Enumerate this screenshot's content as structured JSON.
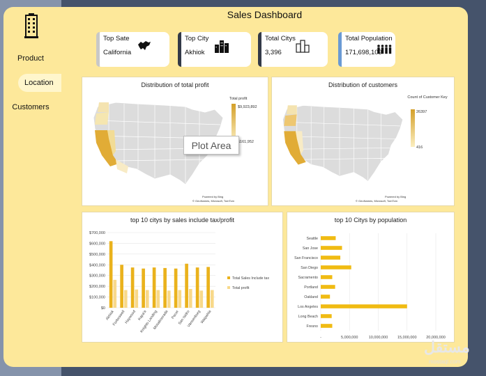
{
  "sidebar": {
    "items": [
      {
        "label": "Product"
      },
      {
        "label": "Location",
        "active": true
      },
      {
        "label": "Customers"
      }
    ]
  },
  "title": "Sales Dashboard",
  "cards": [
    {
      "label": "Top Sate",
      "value": "California",
      "accent": "#c8c8c8"
    },
    {
      "label": "Top City",
      "value": "Akhiok",
      "accent": "#333a48"
    },
    {
      "label": "Total Citys",
      "value": "3,396",
      "accent": "#333a48"
    },
    {
      "label": "Total Population",
      "value": "171,698,109",
      "accent": "#6a9ad4"
    }
  ],
  "map1": {
    "title": "Distribution of total profit",
    "legend_title": "Total profit",
    "max": "$9,923,892",
    "min": "$161,952",
    "powered": "Powered by Bing",
    "credit": "© GeoNames, Microsoft, TomTom"
  },
  "map2": {
    "title": "Distribution of customers",
    "legend_title": "Count of Customer Key",
    "max": "26397",
    "min": "416",
    "powered": "Powered by Bing",
    "credit": "© GeoNames, Microsoft, TomTom"
  },
  "tooltip": "Plot Area",
  "chart_data": [
    {
      "type": "bar",
      "title": "top 10 citys by sales include tax/profit",
      "categories": [
        "Akhiok",
        "Forbeswell",
        "Haywood",
        "Kapa'a",
        "Knights Landing",
        "Mosaboorada",
        "Pacer",
        "San Isidro",
        "Vansenburg",
        "Waipahia"
      ],
      "series": [
        {
          "name": "Total Sales Include tax",
          "values": [
            620000,
            400000,
            375000,
            365000,
            375000,
            370000,
            365000,
            410000,
            375000,
            380000
          ],
          "color": "#eab21c"
        },
        {
          "name": "Total profit",
          "values": [
            260000,
            165000,
            170000,
            165000,
            165000,
            160000,
            165000,
            175000,
            160000,
            165000
          ],
          "color": "#f8d98a"
        }
      ],
      "yticks": [
        "$0",
        "$100,000",
        "$200,000",
        "$300,000",
        "$400,000",
        "$500,000",
        "$600,000",
        "$700,000"
      ],
      "ylim": [
        0,
        700000
      ]
    },
    {
      "type": "bar",
      "title": "top 10 Citys by population",
      "categories": [
        "Seattle",
        "San Jose",
        "San Francisco",
        "San Diego",
        "Sacramento",
        "Portland",
        "Oakland",
        "Los Angeles",
        "Long Beach",
        "Fresno"
      ],
      "values": [
        2600000,
        3700000,
        3400000,
        5300000,
        2000000,
        2500000,
        1600000,
        15000000,
        1900000,
        2000000
      ],
      "xticks": [
        "-",
        "5,000,000",
        "10,000,000",
        "15,000,000",
        "20,000,000"
      ],
      "xlim": [
        0,
        20000000
      ],
      "color": "#f0bb12"
    }
  ],
  "watermark": {
    "ar": "مستقل",
    "en": "mostaql.com"
  }
}
